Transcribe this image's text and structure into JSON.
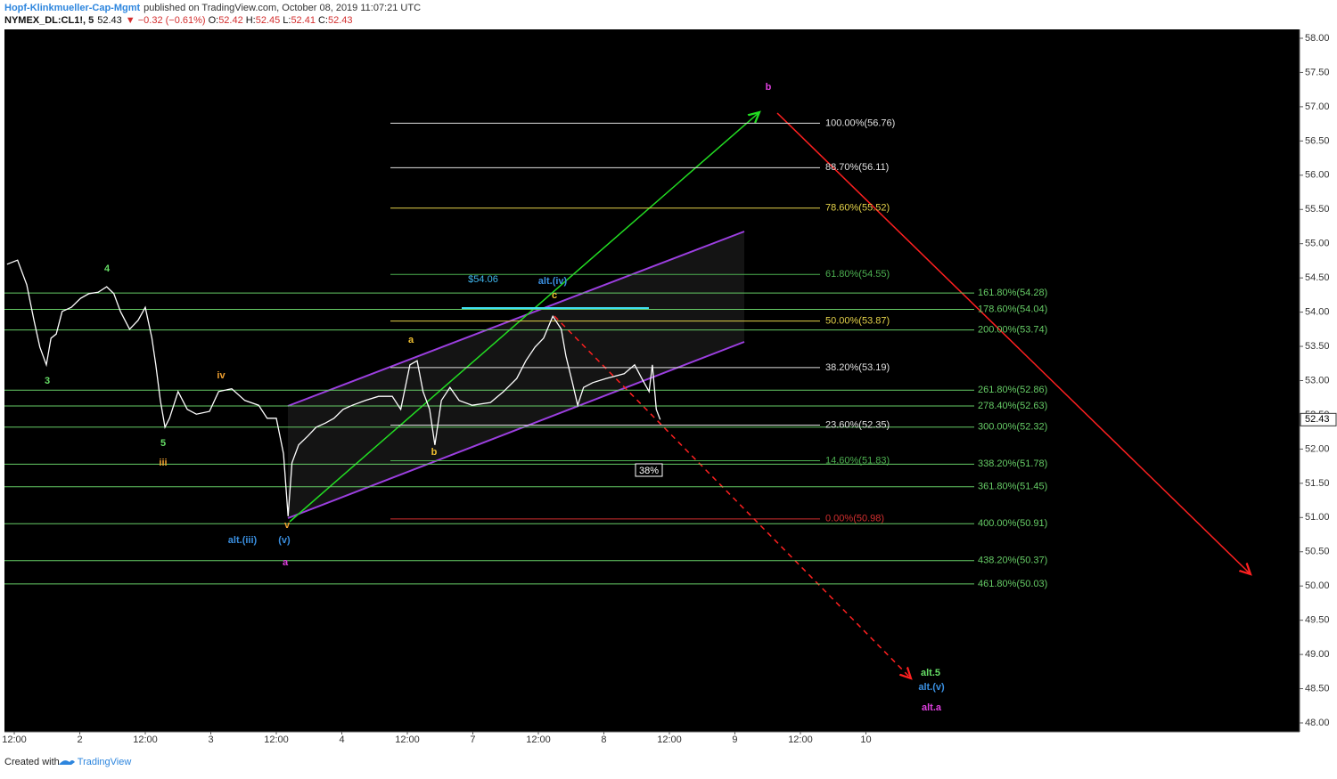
{
  "header": {
    "author": "Hopf-Klinkmueller-Cap-Mgmt",
    "published": "published on TradingView.com, October 08, 2019 11:07:21 UTC",
    "symbol": "NYMEX_DL:CL1!, 5",
    "last": "52.43",
    "change": "▼ −0.32 (−0.61%)",
    "ohlc": [
      {
        "key": "O:",
        "value": "52.42"
      },
      {
        "key": "H:",
        "value": "52.45"
      },
      {
        "key": "L:",
        "value": "52.41"
      },
      {
        "key": "C:",
        "value": "52.43"
      }
    ]
  },
  "chart_data": {
    "type": "line",
    "color": "#ffffff",
    "x": [
      -0.11,
      0.05,
      0.19,
      0.3,
      0.39,
      0.49,
      0.56,
      0.64,
      0.73,
      0.87,
      1.01,
      1.14,
      1.28,
      1.41,
      1.52,
      1.62,
      1.76,
      1.89,
      2.0,
      2.1,
      2.16,
      2.23,
      2.3,
      2.37,
      2.5,
      2.64,
      2.78,
      2.98,
      3.12,
      3.32,
      3.52,
      3.73,
      3.86,
      4.0,
      4.11,
      4.18,
      4.24,
      4.34,
      4.48,
      4.61,
      4.75,
      4.88,
      5.02,
      5.16,
      5.36,
      5.56,
      5.77,
      5.9,
      6.04,
      6.15,
      6.24,
      6.34,
      6.42,
      6.52,
      6.65,
      6.79,
      6.99,
      7.27,
      7.47,
      7.67,
      7.81,
      7.95,
      8.08,
      8.22,
      8.35,
      8.42,
      8.52,
      8.6,
      8.69,
      8.83,
      9.03,
      9.31,
      9.47,
      9.58,
      9.69,
      9.74,
      9.8,
      9.86
    ],
    "values": [
      54.7,
      54.76,
      54.4,
      53.88,
      53.49,
      53.23,
      53.62,
      53.68,
      54.01,
      54.07,
      54.2,
      54.27,
      54.29,
      54.37,
      54.27,
      54.01,
      53.75,
      53.88,
      54.07,
      53.62,
      53.23,
      52.71,
      52.32,
      52.45,
      52.84,
      52.58,
      52.51,
      52.55,
      52.84,
      52.88,
      52.71,
      52.64,
      52.45,
      52.45,
      51.93,
      51.02,
      51.8,
      52.06,
      52.19,
      52.32,
      52.38,
      52.45,
      52.58,
      52.64,
      52.71,
      52.77,
      52.77,
      52.58,
      53.23,
      53.29,
      52.84,
      52.58,
      52.06,
      52.71,
      52.9,
      52.71,
      52.64,
      52.68,
      52.84,
      53.03,
      53.29,
      53.49,
      53.62,
      53.94,
      53.75,
      53.36,
      52.97,
      52.64,
      52.9,
      52.97,
      53.03,
      53.1,
      53.23,
      53.03,
      52.84,
      53.23,
      52.58,
      52.43
    ],
    "xlim": [
      -0.15,
      19.62
    ],
    "xticks": [
      {
        "value": 0,
        "label": "12:00"
      },
      {
        "value": 1,
        "label": "2"
      },
      {
        "value": 2,
        "label": "12:00"
      },
      {
        "value": 3,
        "label": "3"
      },
      {
        "value": 4,
        "label": "12:00"
      },
      {
        "value": 5,
        "label": "4"
      },
      {
        "value": 6,
        "label": "12:00"
      },
      {
        "value": 7,
        "label": "7"
      },
      {
        "value": 8,
        "label": "12:00"
      },
      {
        "value": 9,
        "label": "8"
      },
      {
        "value": 10,
        "label": "12:00"
      },
      {
        "value": 11,
        "label": "9"
      },
      {
        "value": 12,
        "label": "12:00"
      },
      {
        "value": 13,
        "label": "10"
      }
    ],
    "ylim": [
      47.87,
      58.13
    ],
    "yticks": [
      {
        "value": 48,
        "label": "48.00"
      },
      {
        "value": 48.5,
        "label": "48.50"
      },
      {
        "value": 49,
        "label": "49.00"
      },
      {
        "value": 49.5,
        "label": "49.50"
      },
      {
        "value": 50,
        "label": "50.00"
      },
      {
        "value": 50.5,
        "label": "50.50"
      },
      {
        "value": 51,
        "label": "51.00"
      },
      {
        "value": 51.5,
        "label": "51.50"
      },
      {
        "value": 52,
        "label": "52.00"
      },
      {
        "value": 52.5,
        "label": "52.50"
      },
      {
        "value": 53,
        "label": "53.00"
      },
      {
        "value": 53.5,
        "label": "53.50"
      },
      {
        "value": 54,
        "label": "54.00"
      },
      {
        "value": 54.5,
        "label": "54.50"
      },
      {
        "value": 55,
        "label": "55.00"
      },
      {
        "value": 55.5,
        "label": "55.50"
      },
      {
        "value": 56,
        "label": "56.00"
      },
      {
        "value": 56.5,
        "label": "56.50"
      },
      {
        "value": 57,
        "label": "57.00"
      },
      {
        "value": 57.5,
        "label": "57.50"
      },
      {
        "value": 58,
        "label": "58.00"
      }
    ],
    "last_price": 52.43,
    "fib_levels": [
      {
        "label": "100.00%(56.76)",
        "value": 56.76,
        "color": "#e0e0e0"
      },
      {
        "label": "88.70%(56.11)",
        "value": 56.11,
        "color": "#e0e0e0"
      },
      {
        "label": "78.60%(55.52)",
        "value": 55.52,
        "color": "#e5d34a"
      },
      {
        "label": "61.80%(54.55)",
        "value": 54.55,
        "color": "#4caf50"
      },
      {
        "label": "50.00%(53.87)",
        "value": 53.87,
        "color": "#e5d34a"
      },
      {
        "label": "38.20%(53.19)",
        "value": 53.19,
        "color": "#e0e0e0"
      },
      {
        "label": "23.60%(52.35)",
        "value": 52.35,
        "color": "#e0e0e0"
      },
      {
        "label": "14.60%(51.83)",
        "value": 51.83,
        "color": "#4caf50"
      },
      {
        "label": "0.00%(50.98)",
        "value": 50.98,
        "color": "#d32f2f"
      }
    ],
    "fib_ext_levels": [
      {
        "label": "161.80%(54.28)",
        "value": 54.28,
        "color": "#66cc66"
      },
      {
        "label": "178.60%(54.04)",
        "value": 54.04,
        "color": "#66cc66"
      },
      {
        "label": "200.00%(53.74)",
        "value": 53.74,
        "color": "#66cc66"
      },
      {
        "label": "261.80%(52.86)",
        "value": 52.86,
        "color": "#66cc66"
      },
      {
        "label": "278.40%(52.63)",
        "value": 52.63,
        "color": "#66cc66"
      },
      {
        "label": "300.00%(52.32)",
        "value": 52.32,
        "color": "#66cc66"
      },
      {
        "label": "338.20%(51.78)",
        "value": 51.78,
        "color": "#66cc66"
      },
      {
        "label": "361.80%(51.45)",
        "value": 51.45,
        "color": "#66cc66"
      },
      {
        "label": "400.00%(50.91)",
        "value": 50.91,
        "color": "#66cc66"
      },
      {
        "label": "438.20%(50.37)",
        "value": 50.37,
        "color": "#66cc66"
      },
      {
        "label": "461.80%(50.03)",
        "value": 50.03,
        "color": "#66cc66"
      }
    ],
    "annotations": [
      {
        "text": "4",
        "color": "#66dd66"
      },
      {
        "text": "3",
        "color": "#66dd66"
      },
      {
        "text": "5",
        "color": "#66dd66"
      },
      {
        "text": "iii",
        "color": "#f0a030"
      },
      {
        "text": "iv",
        "color": "#f0a030"
      },
      {
        "text": "v",
        "color": "#f0a030"
      },
      {
        "text": "alt.(iii)",
        "color": "#3a8fe0"
      },
      {
        "text": "(v)",
        "color": "#3a8fe0"
      },
      {
        "text": "a",
        "color": "#e040e0"
      },
      {
        "text": "a",
        "color": "#f0c030"
      },
      {
        "text": "b",
        "color": "#f0c030"
      },
      {
        "text": "c",
        "color": "#f0c030"
      },
      {
        "text": "alt.(iv)",
        "color": "#3a8fe0"
      },
      {
        "text": "$54.06",
        "color": "#40b8f0"
      },
      {
        "text": "b",
        "color": "#e040e0"
      },
      {
        "text": "alt.5",
        "color": "#66dd66"
      },
      {
        "text": "alt.(v)",
        "color": "#3a8fe0"
      },
      {
        "text": "alt.a",
        "color": "#e040e0"
      }
    ],
    "box_label": "38%"
  },
  "footer": {
    "created": "Created with",
    "brand": "TradingView"
  }
}
